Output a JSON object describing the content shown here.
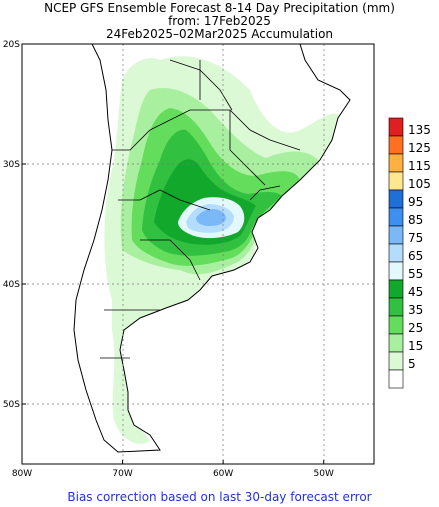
{
  "title": {
    "line1": "NCEP GFS Ensemble Forecast 8-14 Day Precipitation (mm)",
    "line2": "from: 17Feb2025",
    "line3": "24Feb2025–02Mar2025 Accumulation"
  },
  "footer": "Bias correction based on last 30-day forecast error",
  "axes": {
    "lat_labels": [
      "20S",
      "30S",
      "40S",
      "50S"
    ],
    "lon_labels": [
      "80W",
      "70W",
      "60W",
      "50W"
    ],
    "lat_values": [
      -20,
      -30,
      -40,
      -50
    ],
    "lon_values": [
      -80,
      -70,
      -60,
      -50
    ],
    "lon_range": [
      -80,
      -45
    ],
    "lat_range": [
      -55,
      -20
    ],
    "grid": true
  },
  "legend": {
    "placement": "right",
    "entries": [
      {
        "label": "135",
        "color": "#e02020"
      },
      {
        "label": "125",
        "color": "#ff7020"
      },
      {
        "label": "115",
        "color": "#ffb040"
      },
      {
        "label": "105",
        "color": "#ffe890"
      },
      {
        "label": "95",
        "color": "#1f6fd8"
      },
      {
        "label": "85",
        "color": "#3d8ff0"
      },
      {
        "label": "75",
        "color": "#7ab8f8"
      },
      {
        "label": "65",
        "color": "#b4dcfc"
      },
      {
        "label": "55",
        "color": "#e2f8fb"
      },
      {
        "label": "45",
        "color": "#11a82b"
      },
      {
        "label": "35",
        "color": "#32c040"
      },
      {
        "label": "25",
        "color": "#64dc5c"
      },
      {
        "label": "15",
        "color": "#a8f0a0"
      },
      {
        "label": "5",
        "color": "#dcf9d6"
      },
      {
        "label": "",
        "color": "#ffffff"
      }
    ]
  }
}
